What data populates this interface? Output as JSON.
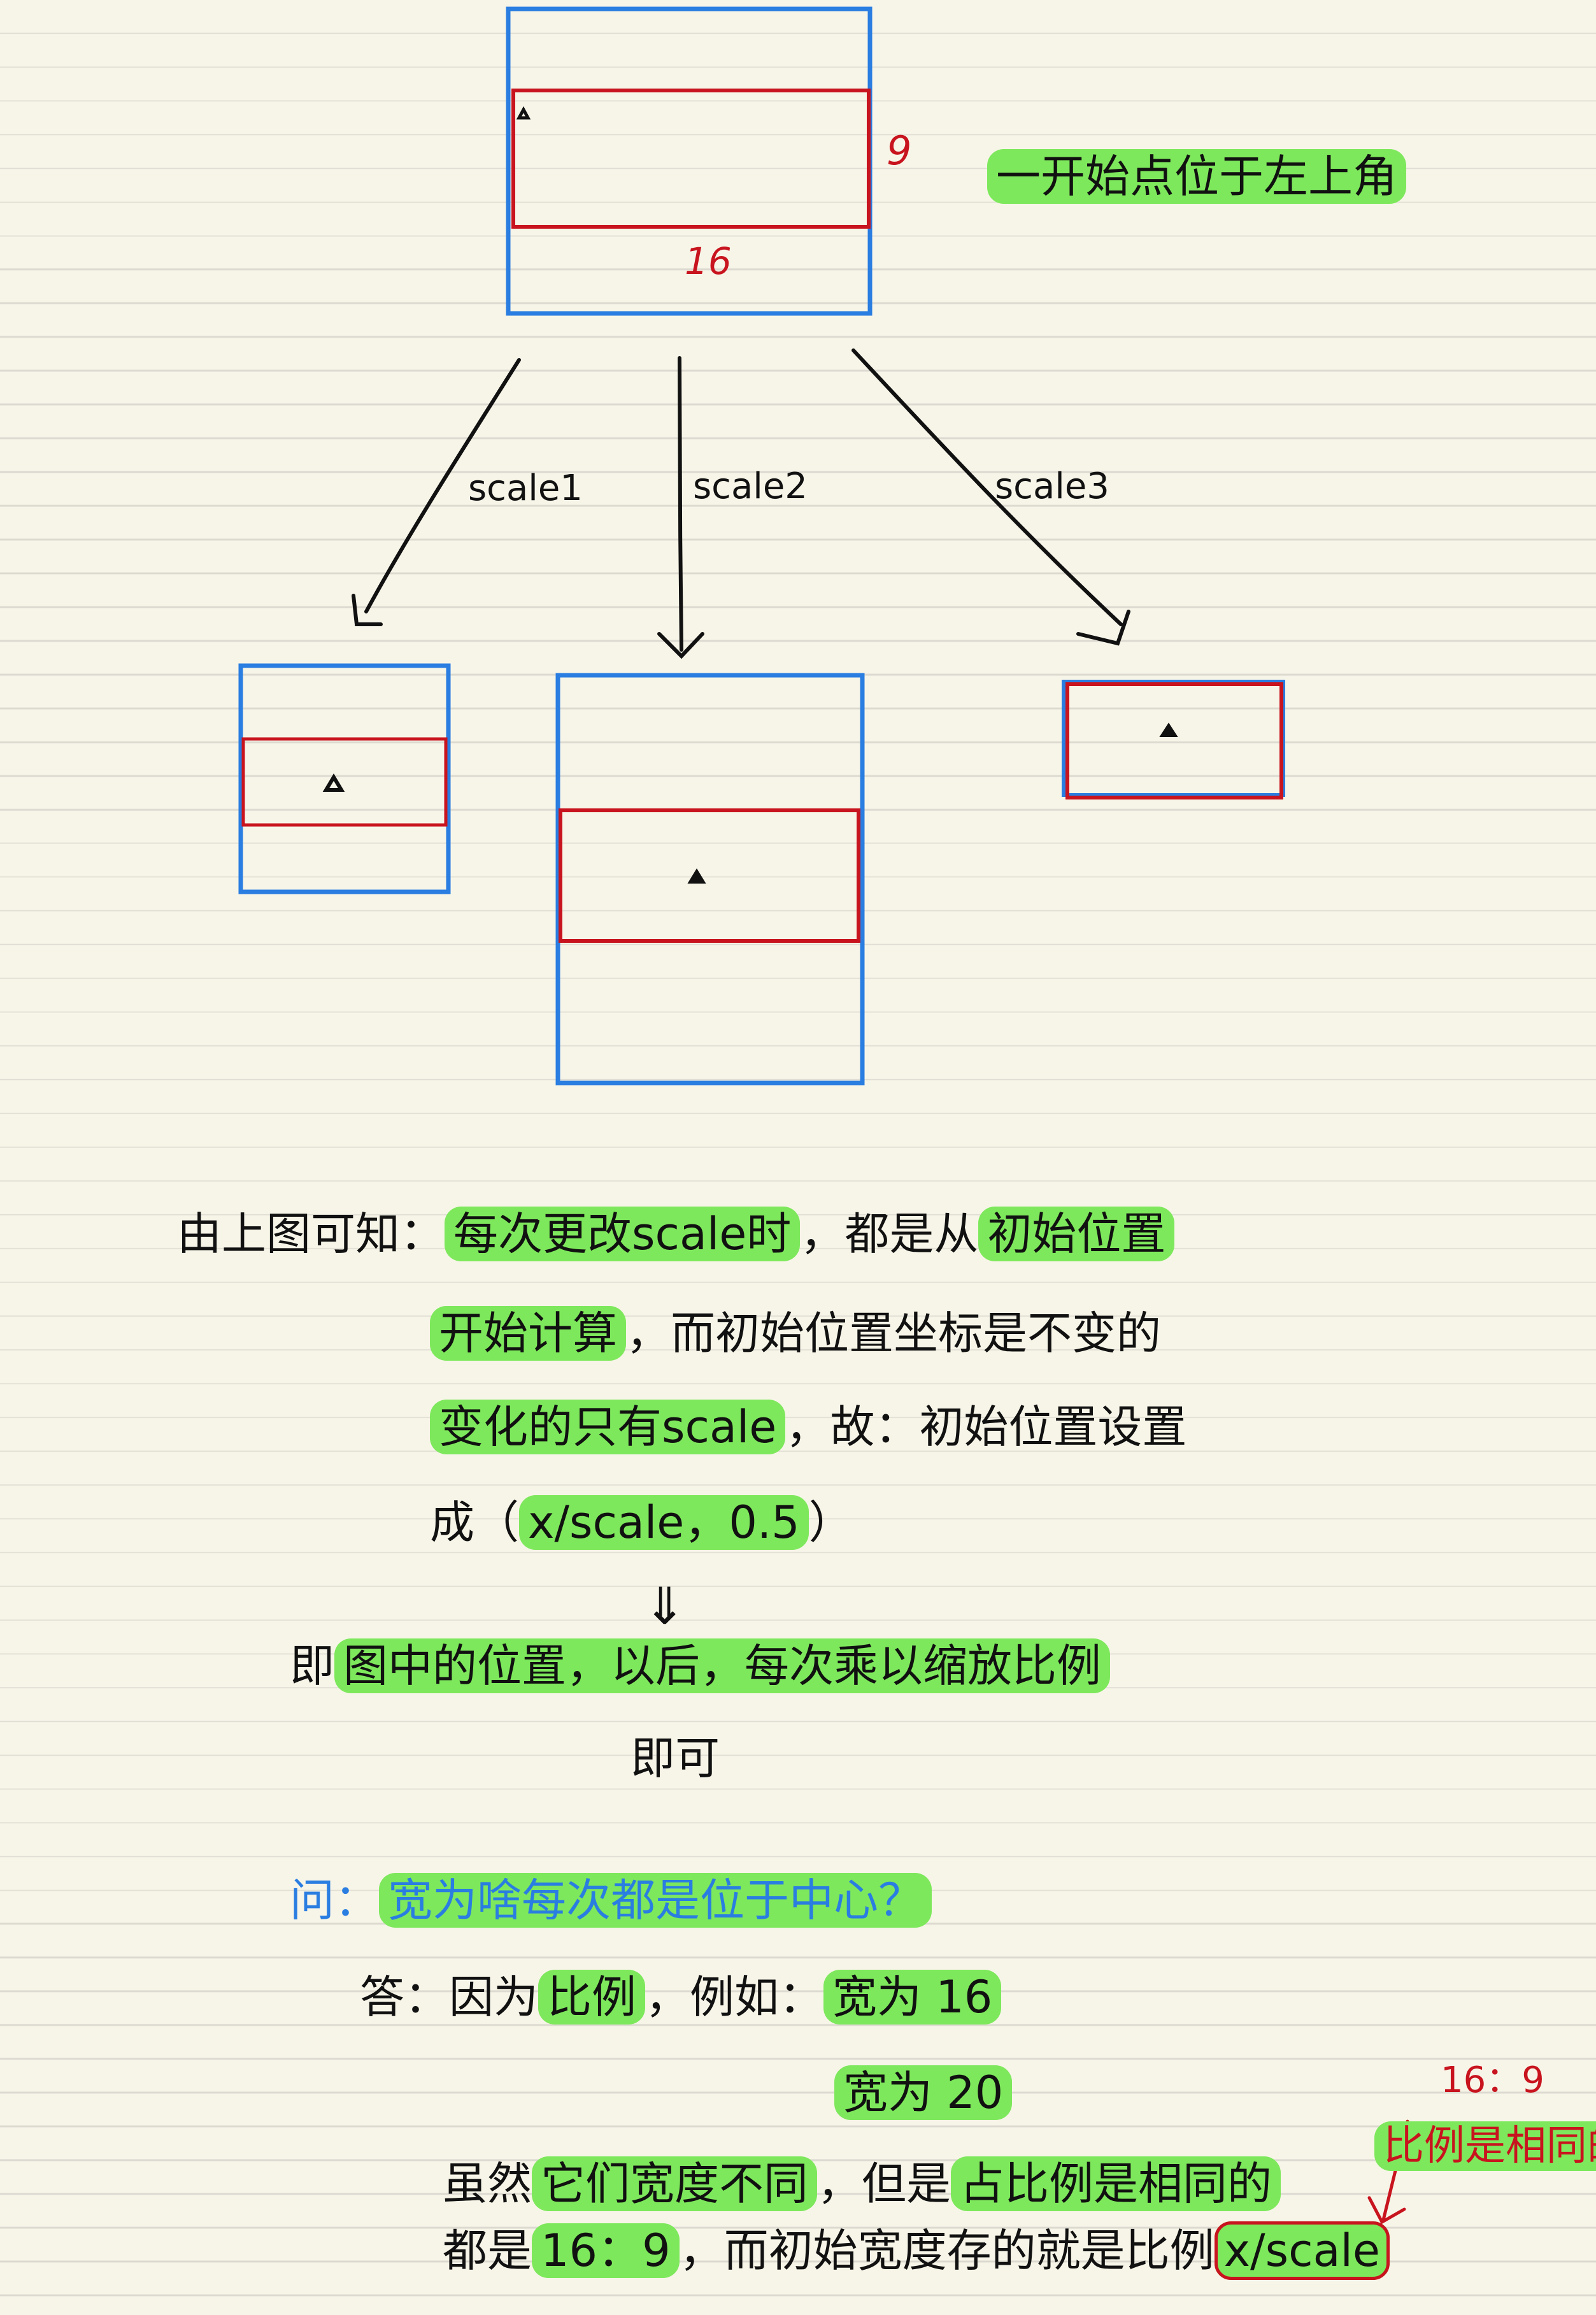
{
  "diagram": {
    "top_labels": {
      "height": "9",
      "width": "16"
    },
    "note_initial": "一开始点位于左上角",
    "arrows": [
      "scale1",
      "scale2",
      "scale3"
    ]
  },
  "notes": {
    "line1": {
      "t1": "由上图可知：",
      "h1": "每次更改scale时",
      "t2": "，都是从",
      "h2": "初始位置"
    },
    "line2": {
      "h1": "开始计算",
      "t1": "，而初始位置坐标是不变的"
    },
    "line3": {
      "h1": "变化的只有scale",
      "t1": "，故：初始位置设置"
    },
    "line4": {
      "t1": "成（",
      "h1": "x/scale，0.5",
      "t2": "）"
    },
    "down_arrow": "⇓",
    "line5": {
      "t1": "即",
      "h1": "图中的位置，以后，每次乘以缩放比例"
    },
    "line6": "即可",
    "question": {
      "label": "问：",
      "text": "宽为啥每次都是位于中心？"
    },
    "answer1": {
      "t1": "答：因为",
      "h1": "比例",
      "t2": "，例如：",
      "h2": "宽为 16"
    },
    "answer2": {
      "h1": "宽为 20"
    },
    "side_ratio": "16：9",
    "side_note": "比例是相同的",
    "answer3": {
      "t1": "虽然",
      "h1": "它们宽度不同",
      "t2": "，但是",
      "h2": "占比例是相同的"
    },
    "answer4": {
      "t1": "都是",
      "h1": "16：9",
      "t2": "，而初始宽度存的就是比例",
      "b1": "x/scale"
    }
  }
}
